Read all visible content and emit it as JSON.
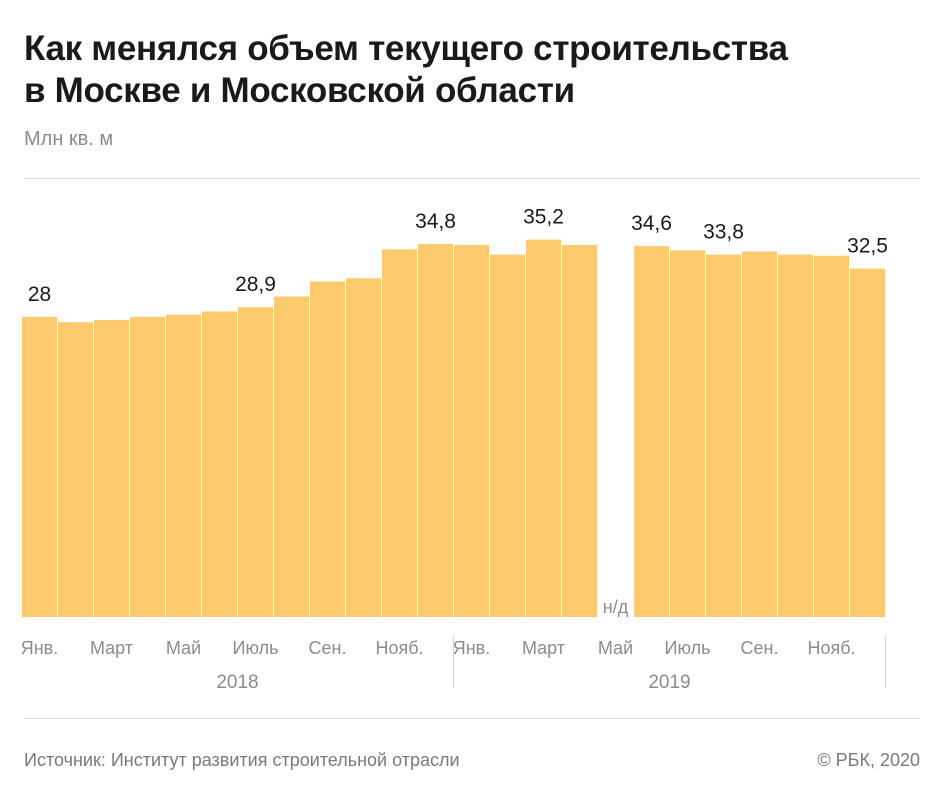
{
  "header": {
    "title_line1": "Как менялся объем текущего строительства",
    "title_line2": "в Москве и Московской области",
    "unit": "Млн кв. м"
  },
  "footer": {
    "source": "Источник: Институт развития строительной отрасли",
    "copyright": "© РБК, 2020"
  },
  "colors": {
    "bar": "#fdcb6e",
    "label": "#1a1a1a",
    "axis_text": "#8c8c8c",
    "separator": "#d0d0d0"
  },
  "chart_data": {
    "type": "bar",
    "ylabel": "Млн кв. м",
    "categories": [
      "2018-01",
      "2018-02",
      "2018-03",
      "2018-04",
      "2018-05",
      "2018-06",
      "2018-07",
      "2018-08",
      "2018-09",
      "2018-10",
      "2018-11",
      "2018-12",
      "2019-01",
      "2019-02",
      "2019-03",
      "2019-04",
      "2019-05",
      "2019-06",
      "2019-07",
      "2019-08",
      "2019-09",
      "2019-10",
      "2019-11",
      "2019-12"
    ],
    "values": [
      28.0,
      27.5,
      27.7,
      28.0,
      28.2,
      28.5,
      28.9,
      29.9,
      31.3,
      31.6,
      34.3,
      34.8,
      34.7,
      33.8,
      35.2,
      34.7,
      null,
      34.6,
      34.2,
      33.8,
      34.1,
      33.8,
      33.7,
      32.5
    ],
    "value_labels": [
      "28",
      "",
      "",
      "",
      "",
      "",
      "28,9",
      "",
      "",
      "",
      "",
      "34,8",
      "",
      "",
      "35,2",
      "",
      "",
      "34,6",
      "",
      "33,8",
      "",
      "",
      "",
      "32,5"
    ],
    "missing_label": "н/д",
    "missing_index": 16,
    "ylim": [
      0,
      40
    ],
    "tick_labels": [
      {
        "index": 0,
        "label": "Янв."
      },
      {
        "index": 2,
        "label": "Март"
      },
      {
        "index": 4,
        "label": "Май"
      },
      {
        "index": 6,
        "label": "Июль"
      },
      {
        "index": 8,
        "label": "Сен."
      },
      {
        "index": 10,
        "label": "Нояб."
      },
      {
        "index": 12,
        "label": "Янв."
      },
      {
        "index": 14,
        "label": "Март"
      },
      {
        "index": 16,
        "label": "Май"
      },
      {
        "index": 18,
        "label": "Июль"
      },
      {
        "index": 20,
        "label": "Сен."
      },
      {
        "index": 22,
        "label": "Нояб."
      }
    ],
    "year_groups": [
      {
        "label": "2018",
        "start": 0,
        "end": 11
      },
      {
        "label": "2019",
        "start": 12,
        "end": 23
      }
    ],
    "grid": false
  }
}
